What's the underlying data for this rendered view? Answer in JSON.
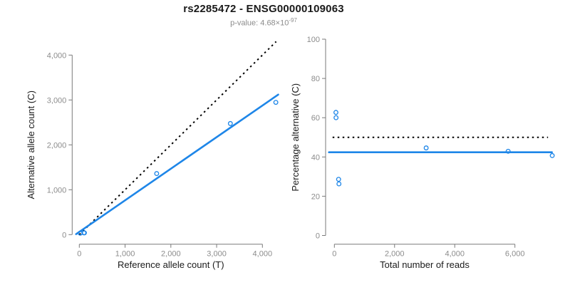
{
  "header": {
    "title": "rs2285472 - ENSG00000109063",
    "subtitle_prefix": "p-value: 4.68×10",
    "subtitle_exponent": "-97"
  },
  "colors": {
    "blue": "#1e86e8",
    "black": "#000000",
    "axis_line": "#7a7a7a",
    "tick_label": "#8c8c8c"
  },
  "chart_data": [
    {
      "type": "scatter",
      "name": "allele-counts-plot",
      "xlabel": "Reference allele count (T)",
      "ylabel": "Alternative allele count (C)",
      "xlim": [
        -170,
        4420
      ],
      "ylim": [
        -120,
        4360
      ],
      "xticks": [
        0,
        1000,
        2000,
        3000,
        4000
      ],
      "xtick_labels": [
        "0",
        "1,000",
        "2,000",
        "3,000",
        "4,000"
      ],
      "yticks": [
        0,
        1000,
        2000,
        3000,
        4000
      ],
      "ytick_labels": [
        "0",
        "1,000",
        "2,000",
        "3,000",
        "4,000"
      ],
      "grid": false,
      "legend": null,
      "points": [
        [
          19,
          32
        ],
        [
          22,
          33
        ],
        [
          100,
          40
        ],
        [
          112,
          40
        ],
        [
          1690,
          1360
        ],
        [
          3300,
          2475
        ],
        [
          4293,
          2947
        ]
      ],
      "lines": [
        {
          "name": "identity-line",
          "style": "dotted",
          "color": "black",
          "x1": 0,
          "y1": 0,
          "x2": 4300,
          "y2": 4300
        },
        {
          "name": "fit-line",
          "style": "solid",
          "color": "blue",
          "x1": -70,
          "y1": 11,
          "x2": 4345,
          "y2": 3119
        }
      ]
    },
    {
      "type": "scatter",
      "name": "percentage-vs-reads-plot",
      "xlabel": "Total number of reads",
      "ylabel": "Percentage alternative (C)",
      "xlim": [
        -290,
        7330
      ],
      "ylim": [
        0,
        100
      ],
      "xticks": [
        0,
        2000,
        4000,
        6000
      ],
      "xtick_labels": [
        "0",
        "2,000",
        "4,000",
        "6,000"
      ],
      "yticks": [
        0,
        20,
        40,
        60,
        80,
        100
      ],
      "ytick_labels": [
        "0",
        "20",
        "40",
        "60",
        "80",
        "100"
      ],
      "grid": false,
      "legend": null,
      "points": [
        [
          51,
          62.7
        ],
        [
          55,
          60.0
        ],
        [
          140,
          28.6
        ],
        [
          152,
          26.3
        ],
        [
          3050,
          44.6
        ],
        [
          5775,
          42.9
        ],
        [
          7240,
          40.7
        ]
      ],
      "lines": [
        {
          "name": "expected-50pct-line",
          "style": "dotted",
          "color": "black",
          "x1": -60,
          "y1": 50,
          "x2": 7100,
          "y2": 50
        },
        {
          "name": "mean-percentage-line",
          "style": "solid",
          "color": "blue",
          "x1": -180,
          "y1": 42.4,
          "x2": 7230,
          "y2": 42.4
        }
      ]
    }
  ]
}
